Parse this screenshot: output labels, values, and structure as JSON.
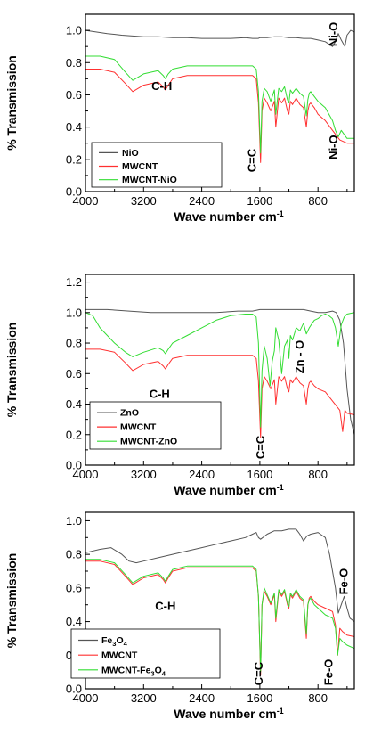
{
  "chart_data": [
    {
      "type": "line",
      "xlabel": "Wave number cm",
      "xlabel_sup": "-1",
      "ylabel": "% Transmission",
      "xlim": [
        4000,
        300
      ],
      "ylim": [
        0.0,
        1.1
      ],
      "xticks": [
        "4000",
        "3200",
        "2400",
        "1600",
        "800"
      ],
      "yticks": [
        "0.0",
        "0.2",
        "0.4",
        "0.6",
        "0.8",
        "1.0"
      ],
      "legend": {
        "position": "bottom-left"
      },
      "series": [
        {
          "name": "NiO",
          "color": "#555555",
          "x": [
            4000,
            3700,
            3500,
            3200,
            3000,
            2800,
            2600,
            2400,
            2200,
            2000,
            1800,
            1700,
            1620,
            1600,
            1500,
            1400,
            1300,
            1200,
            1100,
            1000,
            900,
            800,
            700,
            600,
            560,
            520,
            480,
            430,
            400,
            350,
            300
          ],
          "y": [
            1.0,
            0.98,
            0.97,
            0.96,
            0.96,
            0.955,
            0.955,
            0.95,
            0.95,
            0.95,
            0.955,
            0.95,
            0.95,
            0.955,
            0.955,
            0.96,
            0.96,
            0.955,
            0.955,
            0.95,
            0.95,
            0.94,
            0.93,
            0.9,
            0.93,
            0.98,
            0.94,
            0.9,
            0.97,
            1.0,
            0.99
          ]
        },
        {
          "name": "MWCNT",
          "color": "#ff3030",
          "x": [
            4000,
            3800,
            3600,
            3450,
            3350,
            3200,
            3000,
            2930,
            2900,
            2860,
            2800,
            2600,
            2400,
            2200,
            2000,
            1800,
            1700,
            1650,
            1620,
            1590,
            1570,
            1540,
            1500,
            1450,
            1400,
            1380,
            1340,
            1300,
            1260,
            1220,
            1200,
            1180,
            1150,
            1100,
            1050,
            1000,
            960,
            940,
            920,
            900,
            850,
            800,
            700,
            600,
            500,
            400,
            300
          ],
          "y": [
            0.76,
            0.76,
            0.74,
            0.67,
            0.62,
            0.66,
            0.68,
            0.65,
            0.63,
            0.66,
            0.7,
            0.72,
            0.72,
            0.72,
            0.72,
            0.72,
            0.72,
            0.7,
            0.55,
            0.18,
            0.5,
            0.58,
            0.55,
            0.5,
            0.56,
            0.4,
            0.58,
            0.55,
            0.58,
            0.5,
            0.48,
            0.56,
            0.54,
            0.58,
            0.54,
            0.52,
            0.4,
            0.5,
            0.54,
            0.55,
            0.52,
            0.48,
            0.44,
            0.38,
            0.32,
            0.3,
            0.3
          ]
        },
        {
          "name": "MWCNT-NiO",
          "color": "#33dd33",
          "x": [
            4000,
            3800,
            3600,
            3450,
            3350,
            3200,
            3000,
            2930,
            2900,
            2860,
            2800,
            2600,
            2400,
            2200,
            2000,
            1800,
            1700,
            1650,
            1620,
            1590,
            1570,
            1540,
            1500,
            1450,
            1400,
            1380,
            1340,
            1300,
            1260,
            1220,
            1200,
            1180,
            1150,
            1100,
            1050,
            1000,
            960,
            940,
            920,
            900,
            850,
            800,
            700,
            600,
            560,
            520,
            480,
            400,
            300
          ],
          "y": [
            0.84,
            0.84,
            0.82,
            0.74,
            0.69,
            0.73,
            0.75,
            0.72,
            0.7,
            0.73,
            0.76,
            0.78,
            0.78,
            0.78,
            0.78,
            0.78,
            0.78,
            0.76,
            0.62,
            0.24,
            0.56,
            0.64,
            0.62,
            0.56,
            0.63,
            0.48,
            0.64,
            0.62,
            0.65,
            0.57,
            0.55,
            0.63,
            0.61,
            0.64,
            0.61,
            0.59,
            0.47,
            0.57,
            0.61,
            0.62,
            0.59,
            0.56,
            0.52,
            0.44,
            0.38,
            0.34,
            0.38,
            0.33,
            0.33
          ]
        }
      ],
      "annotations": [
        {
          "text": "C-H",
          "x": 2950,
          "y": 0.63,
          "rotate": 0
        },
        {
          "text": "C=C",
          "x": 1655,
          "y": 0.12,
          "rotate": -90
        },
        {
          "text": "Ni-O",
          "x": 530,
          "y": 0.9,
          "rotate": -90
        },
        {
          "text": "Ni-O",
          "x": 530,
          "y": 0.2,
          "rotate": -90
        }
      ]
    },
    {
      "type": "line",
      "xlabel": "Wave number cm",
      "xlabel_sup": "-1",
      "ylabel": "% Transmission",
      "xlim": [
        4000,
        300
      ],
      "ylim": [
        0.0,
        1.25
      ],
      "xticks": [
        "4000",
        "3200",
        "2400",
        "1600",
        "800"
      ],
      "yticks": [
        "0.0",
        "0.2",
        "0.4",
        "0.6",
        "0.8",
        "1.0",
        "1.2"
      ],
      "legend": {
        "position": "bottom-left"
      },
      "series": [
        {
          "name": "ZnO",
          "color": "#555555",
          "x": [
            4000,
            3700,
            3400,
            3100,
            2800,
            2500,
            2200,
            1900,
            1700,
            1600,
            1500,
            1400,
            1200,
            1000,
            900,
            800,
            700,
            600,
            550,
            500,
            450,
            400,
            350,
            300
          ],
          "y": [
            1.02,
            1.02,
            1.01,
            1.0,
            1.0,
            1.0,
            1.0,
            1.01,
            1.01,
            1.02,
            1.02,
            1.02,
            1.02,
            1.02,
            1.01,
            1.0,
            1.0,
            1.01,
            1.0,
            0.95,
            0.8,
            0.5,
            0.3,
            0.2
          ]
        },
        {
          "name": "MWCNT",
          "color": "#ff3030",
          "x": [
            4000,
            3800,
            3600,
            3450,
            3350,
            3200,
            3000,
            2930,
            2900,
            2860,
            2800,
            2600,
            2400,
            2200,
            2000,
            1800,
            1700,
            1650,
            1620,
            1590,
            1570,
            1540,
            1500,
            1450,
            1400,
            1380,
            1340,
            1300,
            1260,
            1220,
            1200,
            1180,
            1150,
            1100,
            1050,
            1000,
            960,
            940,
            920,
            900,
            850,
            800,
            700,
            600,
            500,
            460,
            430,
            400,
            300
          ],
          "y": [
            0.76,
            0.76,
            0.74,
            0.67,
            0.62,
            0.66,
            0.68,
            0.65,
            0.63,
            0.66,
            0.7,
            0.72,
            0.72,
            0.72,
            0.72,
            0.72,
            0.72,
            0.7,
            0.55,
            0.18,
            0.5,
            0.58,
            0.55,
            0.5,
            0.56,
            0.4,
            0.58,
            0.55,
            0.58,
            0.5,
            0.48,
            0.56,
            0.54,
            0.58,
            0.54,
            0.52,
            0.4,
            0.5,
            0.54,
            0.55,
            0.52,
            0.5,
            0.48,
            0.42,
            0.36,
            0.22,
            0.36,
            0.34,
            0.33
          ]
        },
        {
          "name": "MWCNT-ZnO",
          "color": "#33dd33",
          "x": [
            4000,
            3900,
            3800,
            3600,
            3450,
            3350,
            3200,
            3000,
            2930,
            2900,
            2860,
            2800,
            2600,
            2400,
            2200,
            2000,
            1800,
            1700,
            1650,
            1620,
            1590,
            1570,
            1540,
            1500,
            1460,
            1430,
            1400,
            1380,
            1340,
            1300,
            1260,
            1220,
            1200,
            1180,
            1150,
            1100,
            1050,
            1000,
            960,
            920,
            880,
            850,
            800,
            750,
            700,
            650,
            600,
            560,
            520,
            480,
            440,
            400,
            300
          ],
          "y": [
            1.0,
            0.98,
            0.9,
            0.8,
            0.74,
            0.71,
            0.74,
            0.77,
            0.75,
            0.73,
            0.76,
            0.8,
            0.85,
            0.9,
            0.95,
            0.98,
            0.99,
            0.99,
            0.97,
            0.8,
            0.25,
            0.62,
            0.78,
            0.7,
            0.52,
            0.68,
            0.75,
            0.9,
            0.82,
            0.6,
            0.78,
            0.82,
            0.7,
            0.85,
            0.82,
            0.9,
            0.88,
            0.93,
            0.86,
            0.9,
            0.93,
            0.95,
            0.96,
            0.98,
            0.99,
            0.98,
            0.96,
            0.9,
            0.78,
            0.92,
            0.97,
            0.99,
            1.0
          ]
        }
      ],
      "annotations": [
        {
          "text": "C-H",
          "x": 2980,
          "y": 0.44,
          "rotate": 0
        },
        {
          "text": "C=C",
          "x": 1540,
          "y": 0.04,
          "rotate": -90
        },
        {
          "text": "Zn - O",
          "x": 1000,
          "y": 0.6,
          "rotate": -90
        }
      ]
    },
    {
      "type": "line",
      "xlabel": "Wave number cm",
      "xlabel_sup": "-1",
      "ylabel": "% Transmission",
      "xlim": [
        4000,
        300
      ],
      "ylim": [
        0.0,
        1.05
      ],
      "xticks": [
        "4000",
        "3200",
        "2400",
        "1600",
        "800"
      ],
      "yticks": [
        "0.0",
        "0.2",
        "0.4",
        "0.6",
        "0.8",
        "1.0"
      ],
      "legend": {
        "position": "bottom-left"
      },
      "series": [
        {
          "name": "Fe3O4",
          "name_main": "Fe",
          "name_sub1": "3",
          "name_mid": "O",
          "name_sub2": "4",
          "color": "#555555",
          "x": [
            4000,
            3800,
            3650,
            3500,
            3400,
            3300,
            3200,
            3000,
            2800,
            2600,
            2400,
            2200,
            2000,
            1800,
            1700,
            1650,
            1620,
            1590,
            1500,
            1400,
            1300,
            1200,
            1100,
            1050,
            1000,
            950,
            900,
            800,
            700,
            640,
            600,
            560,
            520,
            480,
            440,
            400,
            360,
            300
          ],
          "y": [
            0.81,
            0.83,
            0.84,
            0.8,
            0.76,
            0.75,
            0.76,
            0.78,
            0.8,
            0.82,
            0.84,
            0.86,
            0.88,
            0.9,
            0.92,
            0.93,
            0.9,
            0.89,
            0.92,
            0.94,
            0.94,
            0.95,
            0.95,
            0.92,
            0.88,
            0.91,
            0.92,
            0.93,
            0.9,
            0.8,
            0.7,
            0.6,
            0.45,
            0.5,
            0.55,
            0.48,
            0.42,
            0.4
          ]
        },
        {
          "name": "MWCNT",
          "color": "#ff3030",
          "x": [
            4000,
            3800,
            3600,
            3450,
            3350,
            3200,
            3000,
            2930,
            2900,
            2860,
            2800,
            2600,
            2400,
            2200,
            2000,
            1800,
            1700,
            1650,
            1620,
            1590,
            1570,
            1540,
            1500,
            1450,
            1400,
            1380,
            1340,
            1300,
            1260,
            1220,
            1200,
            1180,
            1150,
            1100,
            1050,
            1000,
            960,
            940,
            920,
            900,
            850,
            800,
            700,
            600,
            560,
            530,
            500,
            460,
            400,
            300
          ],
          "y": [
            0.76,
            0.76,
            0.74,
            0.67,
            0.62,
            0.66,
            0.68,
            0.65,
            0.63,
            0.66,
            0.7,
            0.72,
            0.72,
            0.72,
            0.72,
            0.72,
            0.72,
            0.7,
            0.55,
            0.08,
            0.5,
            0.58,
            0.55,
            0.5,
            0.56,
            0.4,
            0.58,
            0.55,
            0.58,
            0.5,
            0.48,
            0.56,
            0.54,
            0.58,
            0.54,
            0.52,
            0.3,
            0.5,
            0.54,
            0.55,
            0.52,
            0.5,
            0.48,
            0.46,
            0.38,
            0.2,
            0.36,
            0.34,
            0.32,
            0.31
          ]
        },
        {
          "name": "MWCNT-Fe3O4",
          "name_main": "MWCNT-Fe",
          "name_sub1": "3",
          "name_mid": "O",
          "name_sub2": "4",
          "color": "#33dd33",
          "x": [
            4000,
            3800,
            3600,
            3450,
            3350,
            3200,
            3000,
            2930,
            2900,
            2860,
            2800,
            2600,
            2400,
            2200,
            2000,
            1800,
            1700,
            1650,
            1620,
            1590,
            1570,
            1540,
            1500,
            1450,
            1400,
            1380,
            1340,
            1300,
            1260,
            1220,
            1200,
            1180,
            1150,
            1100,
            1050,
            1000,
            960,
            940,
            920,
            900,
            850,
            800,
            700,
            600,
            560,
            530,
            500,
            460,
            400,
            300
          ],
          "y": [
            0.77,
            0.77,
            0.75,
            0.68,
            0.63,
            0.67,
            0.69,
            0.66,
            0.64,
            0.67,
            0.71,
            0.73,
            0.73,
            0.73,
            0.73,
            0.73,
            0.73,
            0.71,
            0.55,
            0.1,
            0.5,
            0.6,
            0.56,
            0.51,
            0.57,
            0.42,
            0.59,
            0.56,
            0.59,
            0.51,
            0.49,
            0.57,
            0.55,
            0.59,
            0.55,
            0.53,
            0.33,
            0.5,
            0.53,
            0.54,
            0.5,
            0.48,
            0.44,
            0.42,
            0.36,
            0.2,
            0.3,
            0.28,
            0.26,
            0.24
          ]
        }
      ],
      "annotations": [
        {
          "text": "C-H",
          "x": 2900,
          "y": 0.47,
          "rotate": 0
        },
        {
          "text": "C=C",
          "x": 1560,
          "y": 0.02,
          "rotate": -90
        },
        {
          "text": "Fe-O",
          "x": 600,
          "y": 0.02,
          "rotate": -90
        },
        {
          "text": "Fe-O",
          "x": 390,
          "y": 0.56,
          "rotate": -90
        }
      ]
    }
  ]
}
